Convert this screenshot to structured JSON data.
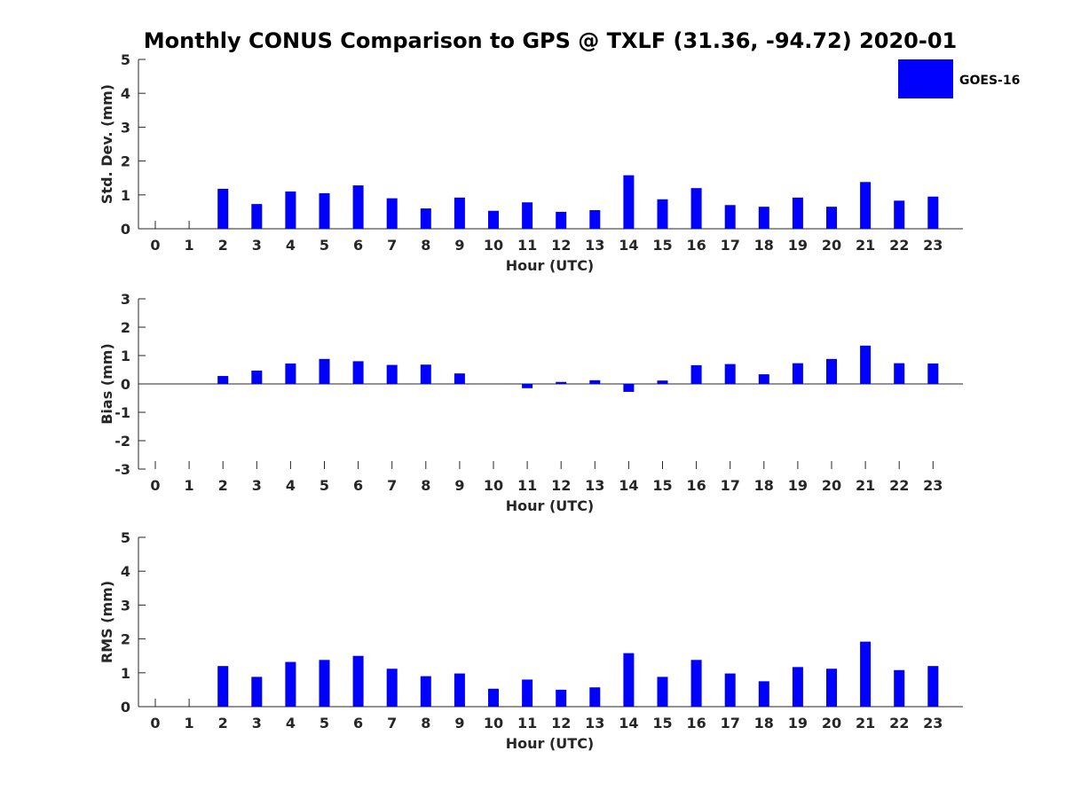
{
  "title": "Monthly CONUS Comparison to GPS @ TXLF (31.36, -94.72) 2020-01",
  "bar_color": "#0000FF",
  "axis_color": "#262626",
  "legend": {
    "label": "GOES-16",
    "location": "top-right"
  },
  "chart_data": [
    {
      "type": "bar",
      "name": "std-dev",
      "series": [
        {
          "name": "GOES-16",
          "values": [
            null,
            null,
            1.18,
            0.73,
            1.1,
            1.05,
            1.28,
            0.9,
            0.6,
            0.92,
            0.53,
            0.78,
            0.5,
            0.55,
            1.58,
            0.87,
            1.2,
            0.7,
            0.65,
            0.92,
            0.65,
            1.38,
            0.83,
            0.95
          ]
        }
      ],
      "categories": [
        "0",
        "1",
        "2",
        "3",
        "4",
        "5",
        "6",
        "7",
        "8",
        "9",
        "10",
        "11",
        "12",
        "13",
        "14",
        "15",
        "16",
        "17",
        "18",
        "19",
        "20",
        "21",
        "22",
        "23"
      ],
      "xlabel": "Hour (UTC)",
      "ylabel": "Std. Dev. (mm)",
      "ylim": [
        0,
        5
      ],
      "yticks": [
        "0",
        "1",
        "2",
        "3",
        "4",
        "5"
      ],
      "grid": false
    },
    {
      "type": "bar",
      "name": "bias",
      "series": [
        {
          "name": "GOES-16",
          "values": [
            null,
            null,
            0.28,
            0.47,
            0.72,
            0.88,
            0.8,
            0.67,
            0.68,
            0.37,
            0.0,
            -0.15,
            0.07,
            0.13,
            -0.28,
            0.12,
            0.66,
            0.7,
            0.34,
            0.73,
            0.88,
            1.35,
            0.73,
            0.72
          ]
        }
      ],
      "categories": [
        "0",
        "1",
        "2",
        "3",
        "4",
        "5",
        "6",
        "7",
        "8",
        "9",
        "10",
        "11",
        "12",
        "13",
        "14",
        "15",
        "16",
        "17",
        "18",
        "19",
        "20",
        "21",
        "22",
        "23"
      ],
      "xlabel": "Hour (UTC)",
      "ylabel": "Bias (mm)",
      "ylim": [
        -3,
        3
      ],
      "yticks": [
        "-3",
        "-2",
        "-1",
        "0",
        "1",
        "2",
        "3"
      ],
      "grid": false
    },
    {
      "type": "bar",
      "name": "rms",
      "series": [
        {
          "name": "GOES-16",
          "values": [
            null,
            null,
            1.2,
            0.88,
            1.32,
            1.38,
            1.5,
            1.12,
            0.9,
            0.98,
            0.53,
            0.8,
            0.5,
            0.57,
            1.58,
            0.88,
            1.38,
            0.98,
            0.75,
            1.17,
            1.12,
            1.92,
            1.08,
            1.2
          ]
        }
      ],
      "categories": [
        "0",
        "1",
        "2",
        "3",
        "4",
        "5",
        "6",
        "7",
        "8",
        "9",
        "10",
        "11",
        "12",
        "13",
        "14",
        "15",
        "16",
        "17",
        "18",
        "19",
        "20",
        "21",
        "22",
        "23"
      ],
      "xlabel": "Hour (UTC)",
      "ylabel": "RMS (mm)",
      "ylim": [
        0,
        5
      ],
      "yticks": [
        "0",
        "1",
        "2",
        "3",
        "4",
        "5"
      ],
      "grid": false
    }
  ]
}
